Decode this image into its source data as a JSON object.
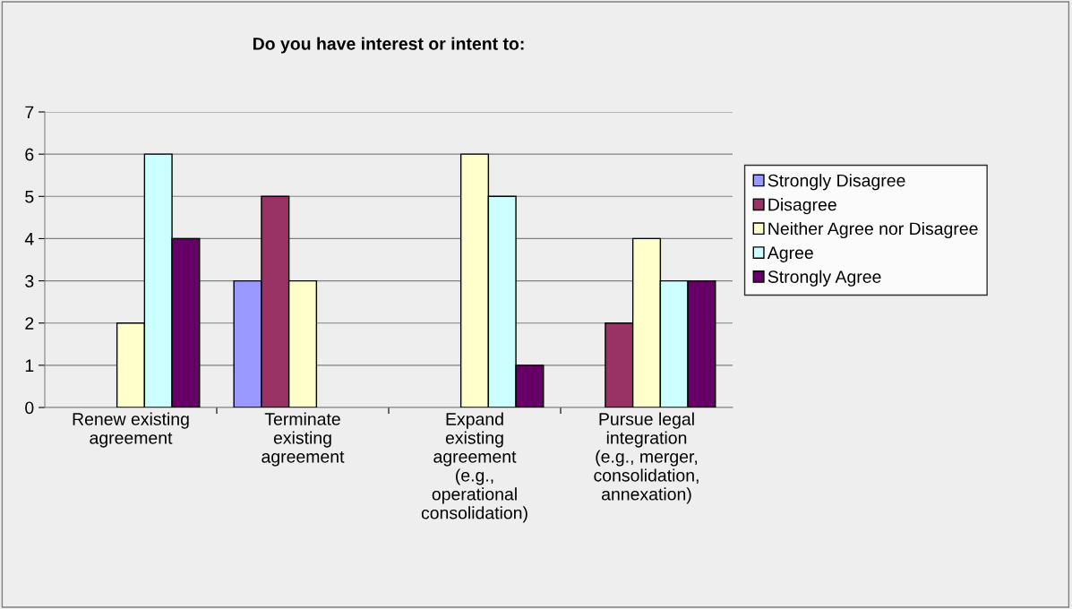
{
  "chart_data": {
    "type": "bar",
    "title": "Do you have interest or intent to:",
    "categories": [
      "Renew existing\nagreement",
      "Terminate\nexisting\nagreement",
      "Expand\nexisting\nagreement\n(e.g.,\noperational\nconsolidation)",
      "Pursue legal\nintegration\n(e.g., merger,\nconsolidation,\nannexation)"
    ],
    "series": [
      {
        "name": "Strongly Disagree",
        "color": "#9999ff",
        "values": [
          0,
          3,
          0,
          0
        ]
      },
      {
        "name": "Disagree",
        "color": "#993366",
        "values": [
          0,
          5,
          0,
          2
        ]
      },
      {
        "name": "Neither Agree nor Disagree",
        "color": "#ffffcc",
        "values": [
          2,
          3,
          6,
          4
        ]
      },
      {
        "name": "Agree",
        "color": "#ccffff",
        "values": [
          6,
          0,
          5,
          3
        ]
      },
      {
        "name": "Strongly Agree",
        "color": "#660066",
        "values": [
          4,
          0,
          1,
          3
        ]
      }
    ],
    "ylim": [
      0,
      7
    ],
    "yticks": [
      0,
      1,
      2,
      3,
      4,
      5,
      6,
      7
    ],
    "grid": "y",
    "legend": "right"
  }
}
